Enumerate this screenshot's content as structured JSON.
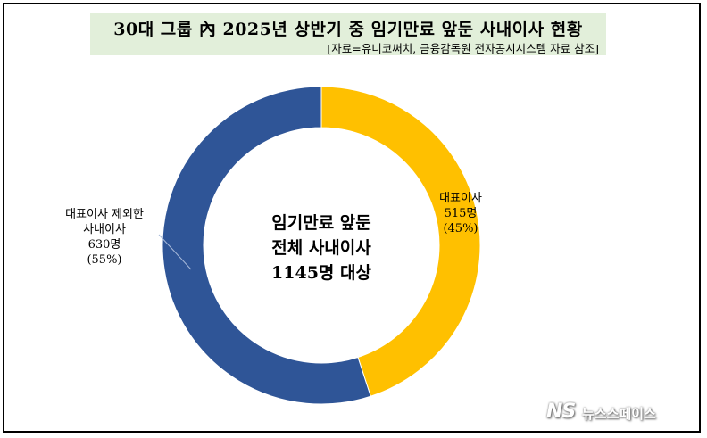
{
  "chart_data": {
    "type": "pie",
    "title": "30대 그룹 內 2025년 상반기 중 임기만료 앞둔 사내이사 현황",
    "subtitle": "[자료=유니코써치, 금융감독원 전자공시시스템 자료 참조]",
    "center_text": [
      "임기만료 앞둔",
      "전체 사내이사",
      "1145명 대상"
    ],
    "slices": [
      {
        "label": "대표이사",
        "count_label": "515명",
        "pct_label": "(45%)",
        "value": 515,
        "color": "#ffc000"
      },
      {
        "label_lines": [
          "대표이사 제외한",
          "사내이사"
        ],
        "count_label": "630명",
        "pct_label": "(55%)",
        "value": 630,
        "color": "#2f5597"
      }
    ]
  },
  "watermark": {
    "logo": "NS",
    "text": "뉴스스페이스"
  }
}
